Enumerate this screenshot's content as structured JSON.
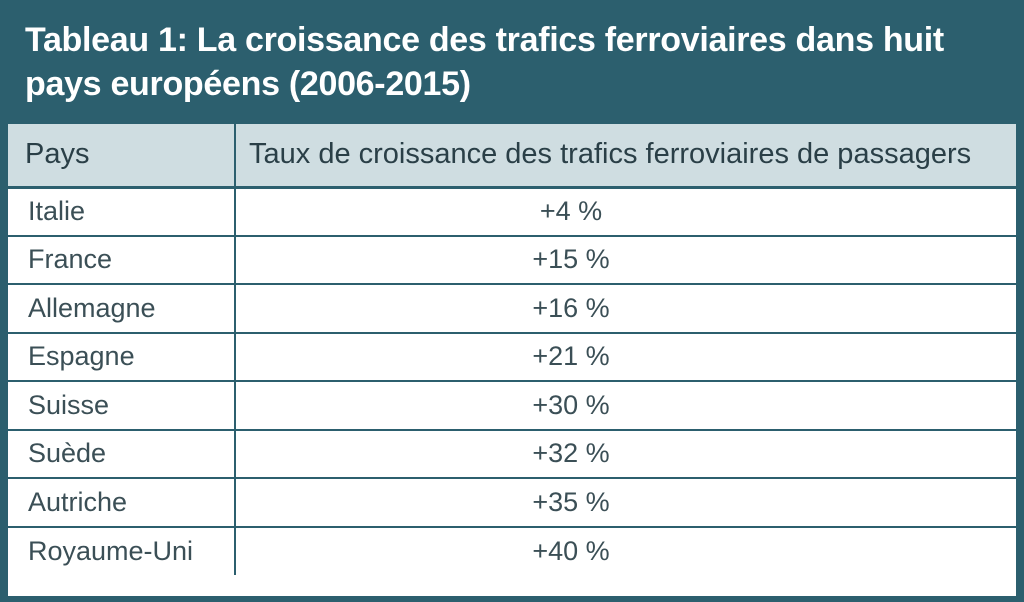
{
  "title": "Tableau 1: La croissance des trafics ferroviaires dans huit pays européens (2006-2015)",
  "colors": {
    "header_band": "#2c5f6e",
    "column_header_bg": "#cfdde1",
    "body_bg": "#ffffff",
    "text": "#3b4f56"
  },
  "table": {
    "headers": [
      "Pays",
      "Taux de croissance des trafics ferroviaires de passagers"
    ],
    "rows": [
      {
        "country": "Italie",
        "rate": "+4 %"
      },
      {
        "country": "France",
        "rate": "+15 %"
      },
      {
        "country": "Allemagne",
        "rate": "+16 %"
      },
      {
        "country": "Espagne",
        "rate": "+21 %"
      },
      {
        "country": "Suisse",
        "rate": "+30 %"
      },
      {
        "country": "Suède",
        "rate": "+32 %"
      },
      {
        "country": "Autriche",
        "rate": "+35 %"
      },
      {
        "country": "Royaume-Uni",
        "rate": "+40 %"
      }
    ]
  },
  "chart_data": {
    "type": "table",
    "title": "Tableau 1: La croissance des trafics ferroviaires dans huit pays européens (2006-2015)",
    "columns": [
      "Pays",
      "Taux de croissance des trafics ferroviaires de passagers"
    ],
    "categories": [
      "Italie",
      "France",
      "Allemagne",
      "Espagne",
      "Suisse",
      "Suède",
      "Autriche",
      "Royaume-Uni"
    ],
    "values": [
      4,
      15,
      16,
      21,
      30,
      32,
      35,
      40
    ],
    "unit": "%"
  }
}
